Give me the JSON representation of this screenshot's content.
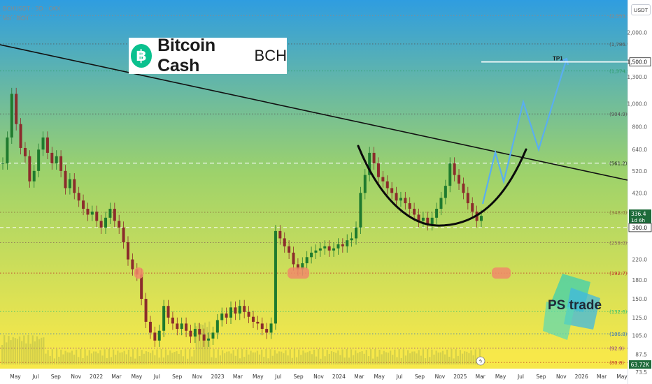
{
  "header": {
    "symbol_line": "BCHUSDT · 3D · OKX",
    "volume_line": "Vol · BCH"
  },
  "logo": {
    "coin_symbol": "฿",
    "name": "Bitcoin Cash",
    "ticker": "BCH",
    "coin_color": "#0ac18e"
  },
  "watermark": {
    "text": "PS trade"
  },
  "colors": {
    "bg_top": "#2f9de0",
    "bg_mid": "#9dd26b",
    "bg_bottom": "#f7e84a",
    "candle_up": "#1f7a2e",
    "candle_down": "#8b2c2c",
    "trendline": "#111111",
    "cup": "#0b0b0b",
    "projection": "#5aaef0",
    "zone_fill": "#f08a6a"
  },
  "chart_data": {
    "type": "candlestick",
    "x_axis_labels": [
      "May",
      "Jul",
      "Sep",
      "Nov",
      "2022",
      "Mar",
      "May",
      "Jul",
      "Sep",
      "Nov",
      "2023",
      "Mar",
      "May",
      "Jul",
      "Sep",
      "Nov",
      "2024",
      "Mar",
      "May",
      "Jul",
      "Sep",
      "Nov",
      "2025",
      "Mar",
      "May",
      "Jul",
      "Sep",
      "Nov",
      "2026",
      "Mar",
      "May"
    ],
    "y_axis": {
      "scale": "log",
      "unit": "USDT",
      "range": [
        65,
        2700
      ],
      "ticks": [
        "2,000.0",
        "1,300.0",
        "1,000.0",
        "800.0",
        "640.0",
        "520.0",
        "420.0",
        "300.0",
        "220.0",
        "180.0",
        "150.0",
        "125.0",
        "105.0",
        "87.5",
        "73.5"
      ],
      "tick_values": [
        2000,
        1300,
        1000,
        800,
        640,
        520,
        420,
        300,
        220,
        180,
        150,
        125,
        105,
        87.5,
        73.5
      ]
    },
    "price_levels": [
      {
        "label": "(2,353.1)",
        "value": 2353.1,
        "color": "#8a8a8a",
        "style": "dotted"
      },
      {
        "label": "(1,786.7)",
        "value": 1786.7,
        "color": "#555555",
        "style": "dotted"
      },
      {
        "label": "(1,374.3)",
        "value": 1374.3,
        "color": "#2f9e6b",
        "style": "dotted"
      },
      {
        "label": "(904.9)",
        "value": 904.9,
        "color": "#555555",
        "style": "dotted"
      },
      {
        "label": "(561.2)",
        "value": 561.2,
        "color": "#ffffff",
        "style": "dashed"
      },
      {
        "label": "(348.0)",
        "value": 348.0,
        "color": "#8b6a3a",
        "style": "dotted"
      },
      {
        "label": "(259.0)",
        "value": 259.0,
        "color": "#8a6a5a",
        "style": "dotted"
      },
      {
        "label": "(192.7)",
        "value": 192.7,
        "color": "#c0392b",
        "style": "dotted"
      },
      {
        "label": "(132.6)",
        "value": 132.6,
        "color": "#2fbf71",
        "style": "dotted"
      },
      {
        "label": "(106.8)",
        "value": 106.8,
        "color": "#2f6fbf",
        "style": "dotted"
      },
      {
        "label": "(92.9)",
        "value": 92.9,
        "color": "#8a3a8a",
        "style": "dotted"
      },
      {
        "label": "(80.8)",
        "value": 80.8,
        "color": "#c0392b",
        "style": "dotted"
      }
    ],
    "current_price": {
      "label": "336.4",
      "countdown": "1d 6h",
      "value": 336.4
    },
    "marked_levels": [
      {
        "label": "1,500.0",
        "value": 1500.0
      },
      {
        "label": "300.0",
        "value": 300.0
      }
    ],
    "target": {
      "label": "TP1",
      "value": 1500.0
    },
    "volume_label": "63.72K",
    "annotations": [
      "resistance trendline",
      "cup pattern",
      "projected path to TP1",
      "support zones"
    ],
    "candles_close": [
      [
        0,
        560
      ],
      [
        1,
        720
      ],
      [
        2,
        1100
      ],
      [
        3,
        820
      ],
      [
        4,
        650
      ],
      [
        5,
        600
      ],
      [
        6,
        470
      ],
      [
        7,
        520
      ],
      [
        8,
        640
      ],
      [
        9,
        720
      ],
      [
        10,
        620
      ],
      [
        11,
        560
      ],
      [
        12,
        600
      ],
      [
        13,
        520
      ],
      [
        14,
        440
      ],
      [
        15,
        480
      ],
      [
        16,
        420
      ],
      [
        17,
        390
      ],
      [
        18,
        360
      ],
      [
        19,
        340
      ],
      [
        20,
        350
      ],
      [
        21,
        320
      ],
      [
        22,
        300
      ],
      [
        23,
        330
      ],
      [
        24,
        360
      ],
      [
        25,
        320
      ],
      [
        26,
        300
      ],
      [
        27,
        260
      ],
      [
        28,
        220
      ],
      [
        29,
        200
      ],
      [
        30,
        190
      ],
      [
        31,
        150
      ],
      [
        32,
        120
      ],
      [
        33,
        108
      ],
      [
        34,
        100
      ],
      [
        35,
        110
      ],
      [
        36,
        140
      ],
      [
        37,
        125
      ],
      [
        38,
        118
      ],
      [
        39,
        112
      ],
      [
        40,
        118
      ],
      [
        41,
        110
      ],
      [
        42,
        104
      ],
      [
        43,
        112
      ],
      [
        44,
        106
      ],
      [
        45,
        100
      ],
      [
        46,
        102
      ],
      [
        47,
        108
      ],
      [
        48,
        122
      ],
      [
        49,
        130
      ],
      [
        50,
        125
      ],
      [
        51,
        138
      ],
      [
        52,
        130
      ],
      [
        53,
        140
      ],
      [
        54,
        132
      ],
      [
        55,
        126
      ],
      [
        56,
        120
      ],
      [
        57,
        118
      ],
      [
        58,
        112
      ],
      [
        59,
        108
      ],
      [
        60,
        118
      ],
      [
        61,
        290
      ],
      [
        62,
        270
      ],
      [
        63,
        250
      ],
      [
        64,
        235
      ],
      [
        65,
        210
      ],
      [
        66,
        200
      ],
      [
        67,
        212
      ],
      [
        68,
        225
      ],
      [
        69,
        235
      ],
      [
        70,
        240
      ],
      [
        71,
        245
      ],
      [
        72,
        250
      ],
      [
        73,
        240
      ],
      [
        74,
        245
      ],
      [
        75,
        255
      ],
      [
        76,
        250
      ],
      [
        77,
        265
      ],
      [
        78,
        270
      ],
      [
        79,
        300
      ],
      [
        80,
        420
      ],
      [
        81,
        500
      ],
      [
        82,
        620
      ],
      [
        83,
        560
      ],
      [
        84,
        490
      ],
      [
        85,
        470
      ],
      [
        86,
        440
      ],
      [
        87,
        420
      ],
      [
        88,
        390
      ],
      [
        89,
        400
      ],
      [
        90,
        380
      ],
      [
        91,
        360
      ],
      [
        92,
        340
      ],
      [
        93,
        320
      ],
      [
        94,
        330
      ],
      [
        95,
        310
      ],
      [
        96,
        330
      ],
      [
        97,
        360
      ],
      [
        98,
        400
      ],
      [
        99,
        450
      ],
      [
        100,
        560
      ],
      [
        101,
        500
      ],
      [
        102,
        460
      ],
      [
        103,
        420
      ],
      [
        104,
        380
      ],
      [
        105,
        350
      ],
      [
        106,
        320
      ],
      [
        107,
        336
      ]
    ]
  }
}
